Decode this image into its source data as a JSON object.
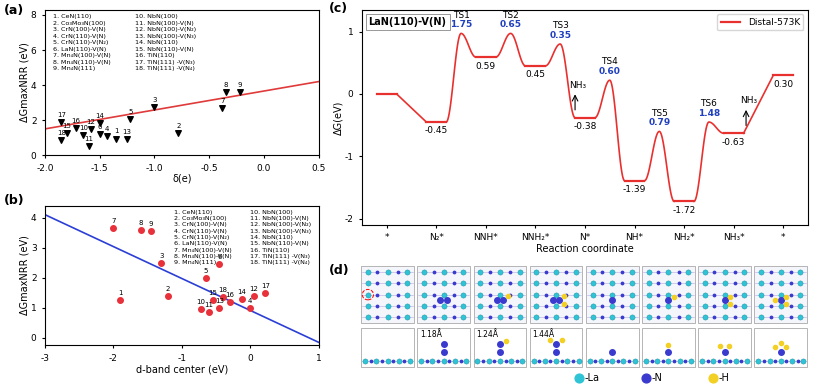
{
  "panel_labels": [
    "(a)",
    "(b)",
    "(c)",
    "(d)"
  ],
  "materials": [
    "1. CeN(110)",
    "2. Co₃Mo₃N(100)",
    "3. CrN(100)-V(N)",
    "4. CrN(110)-V(N)",
    "5. CrN(110)-V(N₂)",
    "6. LaN(110)-V(N)",
    "7. Mn₄N(100)-V(N)",
    "8. Mn₄N(110)-V(N)",
    "9. Mn₄N(111)",
    "10. NbN(100)",
    "11. NbN(100)-V(N)",
    "12. NbN(100)-V(N₂)",
    "13. NbN(100)-V(N₃)",
    "14. NbN(110)",
    "15. NbN(110)-V(N)",
    "16. TiN(110)",
    "17. TiN(111) -V(N₃)",
    "18. TiN(111) -V(N₄)"
  ],
  "chart_data": [
    {
      "type": "scatter",
      "xlabel": "δ(e)",
      "ylabel": "ΔGmaxNRR (eV)",
      "xlim": [
        -2.0,
        0.5
      ],
      "xticks": [
        -2.0,
        -1.5,
        -1.0,
        -0.5,
        0.0,
        0.5
      ],
      "ylim": [
        0,
        8.3
      ],
      "yticks": [
        0,
        2,
        4,
        6,
        8
      ],
      "marker": "triangle_down",
      "color": "#000000",
      "point_labels": [
        "1",
        "2",
        "3",
        "4",
        "5",
        "6",
        "7",
        "8",
        "9",
        "10",
        "11",
        "12",
        "13",
        "14",
        "15",
        "16",
        "17",
        "18"
      ],
      "x": [
        -1.35,
        -0.78,
        -1.0,
        -1.43,
        -1.22,
        -1.5,
        -0.38,
        -0.35,
        -0.22,
        -1.65,
        -1.6,
        -1.58,
        -1.25,
        -1.5,
        -1.8,
        -1.72,
        -1.85,
        -1.85
      ],
      "values": [
        0.95,
        1.25,
        2.75,
        1.1,
        2.05,
        1.2,
        2.7,
        3.6,
        3.6,
        1.15,
        0.5,
        1.5,
        0.9,
        1.85,
        1.25,
        1.55,
        1.9,
        0.85
      ],
      "fit_line": {
        "x": [
          -2.0,
          0.5
        ],
        "values": [
          1.5,
          4.2
        ],
        "color": "#e03a3a"
      }
    },
    {
      "type": "scatter",
      "xlabel": "d-band center (eV)",
      "ylabel": "ΔGmaxNRR (eV)",
      "xlim": [
        -3,
        1
      ],
      "xticks": [
        -3,
        -2,
        -1,
        0,
        1
      ],
      "ylim": [
        -0.25,
        4.4
      ],
      "yticks": [
        0,
        1,
        2,
        3,
        4
      ],
      "marker": "circle",
      "color": "#e8313a",
      "point_labels": [
        "1",
        "2",
        "3",
        "4",
        "5",
        "6",
        "7",
        "8",
        "9",
        "10",
        "11",
        "12",
        "13",
        "14",
        "15",
        "16",
        "17",
        "18"
      ],
      "x": [
        -1.9,
        -1.2,
        -1.3,
        0.0,
        -0.65,
        -0.45,
        -2.0,
        -1.6,
        -1.45,
        -0.72,
        -0.6,
        0.05,
        -0.45,
        -0.12,
        -0.55,
        -0.3,
        0.22,
        -0.4
      ],
      "values": [
        1.25,
        1.4,
        2.5,
        1.0,
        2.0,
        2.45,
        3.65,
        3.6,
        3.55,
        0.95,
        0.85,
        1.4,
        1.0,
        1.3,
        1.25,
        1.2,
        1.5,
        1.35
      ],
      "fit_line": {
        "x": [
          -3,
          1
        ],
        "values": [
          4.1,
          -0.15
        ],
        "color": "#2b3fd6"
      }
    },
    {
      "type": "energy_profile",
      "box_label": "LaN(110)-V(N)",
      "ylabel": "ΔG(eV)",
      "xlabel": "Reaction coordinate",
      "ylim": [
        -2.1,
        1.35
      ],
      "yticks": [
        -2,
        -1,
        0,
        1
      ],
      "categories": [
        "*",
        "N₂*",
        "NNH*",
        "NNH₂*",
        "N*",
        "NH*",
        "NH₂*",
        "NH₃*",
        "*"
      ],
      "values": [
        0,
        -0.45,
        0.59,
        0.45,
        -0.38,
        -1.39,
        -1.72,
        -0.63,
        0.3
      ],
      "value_labels": [
        null,
        "-0.45",
        "0.59",
        "0.45",
        "-0.38",
        "-1.39",
        "-1.72",
        "-0.63",
        "0.30"
      ],
      "series_name": "Distal-573K",
      "color": "#e8312f",
      "legend": "upper right",
      "transitions": [
        null,
        {
          "ts": "TS1",
          "barrier": 1.75,
          "peak": 0.97
        },
        {
          "ts": "TS2",
          "barrier": 0.65,
          "peak": 0.97
        },
        {
          "ts": "TS3",
          "barrier": 0.35,
          "peak": 0.8,
          "release": "NH₃"
        },
        {
          "ts": "TS4",
          "barrier": 0.6,
          "barrier_label": "0.60",
          "peak": 0.22
        },
        {
          "ts": "TS5",
          "barrier": 0.79,
          "peak": -0.6
        },
        {
          "ts": "TS6",
          "barrier": 1.48,
          "peak": -0.45
        },
        {
          "release": "NH₃"
        }
      ]
    }
  ],
  "structures": {
    "bond_lengths": [
      {
        "frame": 1,
        "text": "1.18Å"
      },
      {
        "frame": 2,
        "text": "1.24Å"
      },
      {
        "frame": 3,
        "text": "1.44Å"
      }
    ],
    "legend": [
      {
        "name": "-La",
        "color": "#2ec4d6"
      },
      {
        "name": "-N",
        "color": "#3a3acf"
      },
      {
        "name": "-H",
        "color": "#f2d024"
      }
    ]
  }
}
